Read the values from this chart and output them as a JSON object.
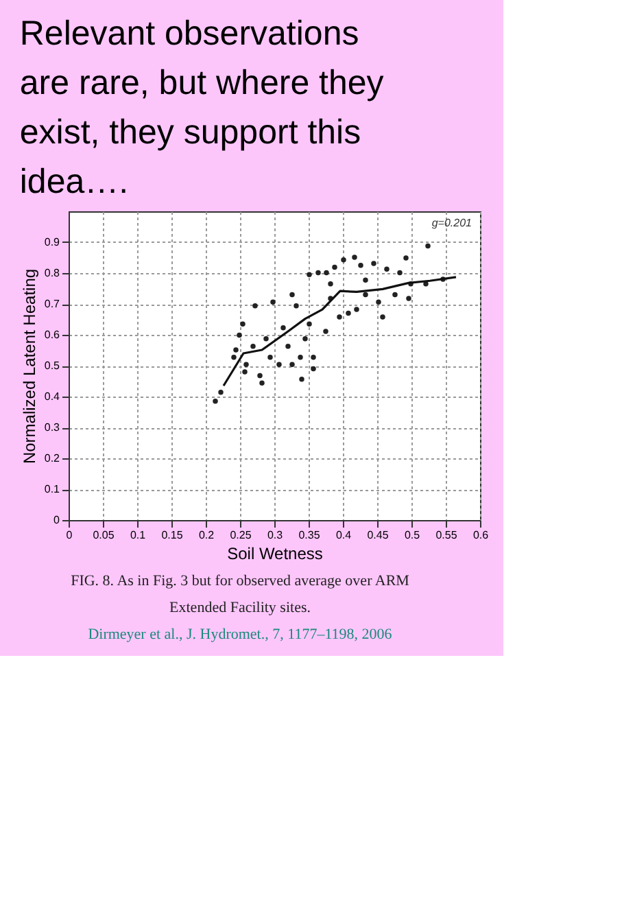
{
  "chart_data": {
    "type": "scatter",
    "title": "Relevant observations are rare, but where they exist, they support this idea….",
    "xlabel": "Soil Wetness",
    "ylabel": "Normalized Latent Heating",
    "xlim": [
      0,
      0.6
    ],
    "ylim": [
      0,
      1
    ],
    "xticks": [
      0,
      0.05,
      0.1,
      0.15,
      0.2,
      0.25,
      0.3,
      0.35,
      0.4,
      0.45,
      0.5,
      0.55,
      0.6
    ],
    "yticks": [
      0,
      0.1,
      0.2,
      0.3,
      0.4,
      0.5,
      0.6,
      0.7,
      0.8,
      0.9
    ],
    "grid": true,
    "marker": "circle",
    "series": [
      {
        "color": "#222222",
        "x": [
          0.214,
          0.222,
          0.241,
          0.249,
          0.254,
          0.257,
          0.272,
          0.282,
          0.279,
          0.288,
          0.298,
          0.294,
          0.307,
          0.326,
          0.326,
          0.34,
          0.338,
          0.345,
          0.351,
          0.357,
          0.357,
          0.364,
          0.375,
          0.376,
          0.388,
          0.401,
          0.382,
          0.395,
          0.408,
          0.417,
          0.426,
          0.433,
          0.445,
          0.458,
          0.452,
          0.464,
          0.476,
          0.483,
          0.492,
          0.496,
          0.499,
          0.524,
          0.521,
          0.546,
          0.42,
          0.332,
          0.313,
          0.269,
          0.259,
          0.244,
          0.32,
          0.351,
          0.382,
          0.433
        ],
        "values": [
          0.385,
          0.414,
          0.527,
          0.599,
          0.635,
          0.48,
          0.694,
          0.444,
          0.468,
          0.587,
          0.706,
          0.527,
          0.504,
          0.504,
          0.73,
          0.456,
          0.527,
          0.587,
          0.795,
          0.527,
          0.49,
          0.801,
          0.611,
          0.801,
          0.819,
          0.843,
          0.718,
          0.658,
          0.67,
          0.851,
          0.825,
          0.73,
          0.831,
          0.658,
          0.706,
          0.813,
          0.73,
          0.801,
          0.849,
          0.718,
          0.765,
          0.888,
          0.765,
          0.78,
          0.682,
          0.694,
          0.623,
          0.563,
          0.504,
          0.551,
          0.563,
          0.635,
          0.765,
          0.777
        ]
      },
      {
        "type": "line",
        "color": "#111111",
        "marker": "none",
        "x": [
          0.226,
          0.255,
          0.282,
          0.32,
          0.345,
          0.37,
          0.396,
          0.42,
          0.458,
          0.496,
          0.527,
          0.565
        ],
        "values": [
          0.435,
          0.54,
          0.551,
          0.611,
          0.652,
          0.682,
          0.742,
          0.739,
          0.748,
          0.768,
          0.775,
          0.787
        ]
      }
    ],
    "annotations": [
      "g=0.201",
      "FIG. 8. As in Fig. 3 but for observed average over ARM Extended Facility sites.",
      "Dirmeyer et al., J. Hydromet., 7, 1177–1198, 2006"
    ]
  }
}
